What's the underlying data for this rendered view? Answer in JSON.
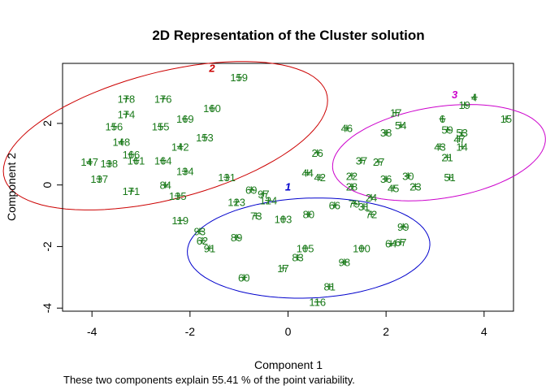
{
  "chart_data": {
    "type": "scatter",
    "title": "2D Representation of the Cluster solution",
    "xlabel": "Component 1",
    "ylabel": "Component 2",
    "footnote": "These two components explain 55.41 % of the point variability.",
    "xlim": [
      -4.6,
      4.6
    ],
    "ylim": [
      -4.1,
      3.95
    ],
    "x_ticks": [
      -4,
      -2,
      0,
      2,
      4
    ],
    "y_ticks": [
      -4,
      -2,
      0,
      2
    ],
    "grid": false,
    "legend": "none",
    "point_color": "#1a7a1a",
    "marker": "+",
    "clusters": [
      {
        "label": "1",
        "color": "#0000cc",
        "center": [
          0.42,
          -2.05
        ],
        "rx": 2.48,
        "ry": 1.62,
        "angle_deg": 5,
        "label_pos": [
          0.0,
          -0.05
        ]
      },
      {
        "label": "2",
        "color": "#cc0000",
        "center": [
          -2.5,
          1.6
        ],
        "rx": 3.6,
        "ry": 1.95,
        "angle_deg": 28,
        "label_pos": [
          -1.55,
          3.8
        ]
      },
      {
        "label": "3",
        "color": "#cc00cc",
        "center": [
          3.08,
          1.05
        ],
        "rx": 2.25,
        "ry": 1.45,
        "angle_deg": 20,
        "label_pos": [
          3.4,
          2.95
        ]
      }
    ],
    "points": [
      {
        "label": "159",
        "x": -1.0,
        "y": 3.5
      },
      {
        "label": "178",
        "x": -3.3,
        "y": 2.8
      },
      {
        "label": "176",
        "x": -2.55,
        "y": 2.8
      },
      {
        "label": "160",
        "x": -1.55,
        "y": 2.5
      },
      {
        "label": "174",
        "x": -3.3,
        "y": 2.3
      },
      {
        "label": "169",
        "x": -2.1,
        "y": 2.15
      },
      {
        "label": "156",
        "x": -3.55,
        "y": 1.9
      },
      {
        "label": "155",
        "x": -2.6,
        "y": 1.9
      },
      {
        "label": "153",
        "x": -1.7,
        "y": 1.55
      },
      {
        "label": "148",
        "x": -3.4,
        "y": 1.4
      },
      {
        "label": "142",
        "x": -2.2,
        "y": 1.25
      },
      {
        "label": "166",
        "x": -3.2,
        "y": 1.0
      },
      {
        "label": "147",
        "x": -4.05,
        "y": 0.75
      },
      {
        "label": "138",
        "x": -3.65,
        "y": 0.7
      },
      {
        "label": "161",
        "x": -3.1,
        "y": 0.8
      },
      {
        "label": "164",
        "x": -2.55,
        "y": 0.8
      },
      {
        "label": "134",
        "x": -2.1,
        "y": 0.45
      },
      {
        "label": "137",
        "x": -3.85,
        "y": 0.2
      },
      {
        "label": "131",
        "x": -1.25,
        "y": 0.25
      },
      {
        "label": "84",
        "x": -2.5,
        "y": 0.0
      },
      {
        "label": "171",
        "x": -3.2,
        "y": -0.2
      },
      {
        "label": "135",
        "x": -2.25,
        "y": -0.35
      },
      {
        "label": "123",
        "x": -1.05,
        "y": -0.55
      },
      {
        "label": "119",
        "x": -2.2,
        "y": -1.15
      },
      {
        "label": "69",
        "x": -0.75,
        "y": -0.15
      },
      {
        "label": "97",
        "x": -0.5,
        "y": -0.28
      },
      {
        "label": "124",
        "x": -0.4,
        "y": -0.5
      },
      {
        "label": "73",
        "x": -0.65,
        "y": -1.0
      },
      {
        "label": "93",
        "x": -1.8,
        "y": -1.5
      },
      {
        "label": "62",
        "x": -1.75,
        "y": -1.8
      },
      {
        "label": "89",
        "x": -1.05,
        "y": -1.7
      },
      {
        "label": "91",
        "x": -1.6,
        "y": -2.05
      },
      {
        "label": "60",
        "x": -0.9,
        "y": -3.0
      },
      {
        "label": "103",
        "x": -0.1,
        "y": -1.1
      },
      {
        "label": "80",
        "x": 0.42,
        "y": -0.95
      },
      {
        "label": "66",
        "x": 0.95,
        "y": -0.65
      },
      {
        "label": "79",
        "x": 1.35,
        "y": -0.6
      },
      {
        "label": "72",
        "x": 1.7,
        "y": -0.95
      },
      {
        "label": "99",
        "x": 2.35,
        "y": -1.35
      },
      {
        "label": "67",
        "x": 2.3,
        "y": -1.85
      },
      {
        "label": "64",
        "x": 2.1,
        "y": -1.9
      },
      {
        "label": "100",
        "x": 1.5,
        "y": -2.05
      },
      {
        "label": "105",
        "x": 0.35,
        "y": -2.05
      },
      {
        "label": "98",
        "x": 1.15,
        "y": -2.5
      },
      {
        "label": "83",
        "x": 0.2,
        "y": -2.35
      },
      {
        "label": "17",
        "x": -0.1,
        "y": -2.7
      },
      {
        "label": "81",
        "x": 0.85,
        "y": -3.3
      },
      {
        "label": "116",
        "x": 0.6,
        "y": -3.8
      },
      {
        "label": "17",
        "x": 2.2,
        "y": 2.35
      },
      {
        "label": "4",
        "x": 3.8,
        "y": 2.85
      },
      {
        "label": "19",
        "x": 3.6,
        "y": 2.6
      },
      {
        "label": "15",
        "x": 4.45,
        "y": 2.15
      },
      {
        "label": "6",
        "x": 3.15,
        "y": 2.15
      },
      {
        "label": "46",
        "x": 1.2,
        "y": 1.85
      },
      {
        "label": "54",
        "x": 2.3,
        "y": 1.95
      },
      {
        "label": "59",
        "x": 3.25,
        "y": 1.8
      },
      {
        "label": "53",
        "x": 3.55,
        "y": 1.7
      },
      {
        "label": "38",
        "x": 2.0,
        "y": 1.7
      },
      {
        "label": "47",
        "x": 3.5,
        "y": 1.5
      },
      {
        "label": "43",
        "x": 3.1,
        "y": 1.25
      },
      {
        "label": "14",
        "x": 3.55,
        "y": 1.25
      },
      {
        "label": "26",
        "x": 0.6,
        "y": 1.05
      },
      {
        "label": "21",
        "x": 3.25,
        "y": 0.9
      },
      {
        "label": "37",
        "x": 1.5,
        "y": 0.8
      },
      {
        "label": "27",
        "x": 1.85,
        "y": 0.75
      },
      {
        "label": "44",
        "x": 0.4,
        "y": 0.4
      },
      {
        "label": "42",
        "x": 0.65,
        "y": 0.25
      },
      {
        "label": "22",
        "x": 1.3,
        "y": 0.3
      },
      {
        "label": "30",
        "x": 2.45,
        "y": 0.3
      },
      {
        "label": "51",
        "x": 3.3,
        "y": 0.25
      },
      {
        "label": "36",
        "x": 2.0,
        "y": 0.2
      },
      {
        "label": "28",
        "x": 1.3,
        "y": -0.05
      },
      {
        "label": "45",
        "x": 2.15,
        "y": -0.1
      },
      {
        "label": "23",
        "x": 2.6,
        "y": -0.05
      },
      {
        "label": "24",
        "x": 1.7,
        "y": -0.4
      },
      {
        "label": "31",
        "x": 1.55,
        "y": -0.7
      }
    ]
  }
}
